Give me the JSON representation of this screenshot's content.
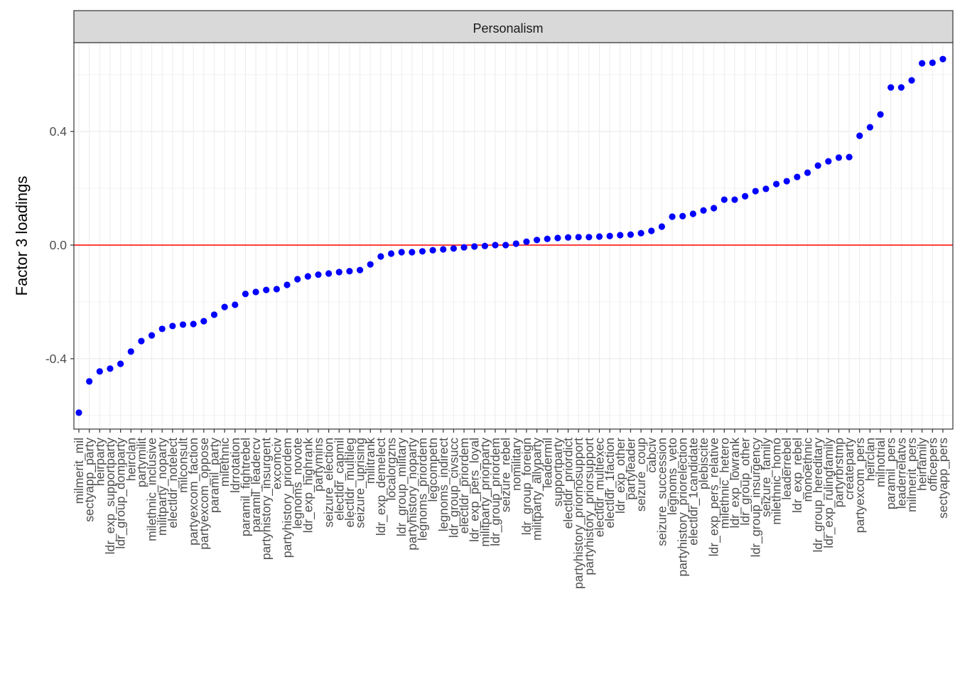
{
  "chart_data": {
    "type": "scatter",
    "panel_title": "Personalism",
    "ylabel": "Factor 3 loadings",
    "xlabel": "",
    "ylim": [
      -0.64,
      0.71
    ],
    "yticks": [
      -0.4,
      0.0,
      0.4
    ],
    "ytick_labels": [
      "-0.4",
      "0.0",
      "0.4"
    ],
    "reference_line_y": 0,
    "grid": true,
    "colors": {
      "points": "#0000ff",
      "reference_line": "#ff0000",
      "strip_background": "#d9d9d9",
      "grid": "#ebebeb",
      "panel_border": "#333333"
    },
    "categories": [
      "milmerit_mil",
      "sectyapp_party",
      "heirparty",
      "ldr_exp_supportparty",
      "ldr_group_domparty",
      "heirclan",
      "partymilit",
      "milethnic_inclusive",
      "militparty_noparty",
      "electldr_notelect",
      "milconsult",
      "partyexcom_faction",
      "partyexcom_oppose",
      "paramil_party",
      "milethnic",
      "ldrrotation",
      "paramil_fightrebel",
      "paramil_leadercv",
      "partyhistory_insurgent",
      "excomciv",
      "partyhistory_priordem",
      "legnoms_novote",
      "ldr_exp_highrank",
      "partymins",
      "seizure_election",
      "electldr_capmil",
      "electldr_multileg",
      "seizure_uprising",
      "militrank",
      "ldr_exp_demelect",
      "localorgzns",
      "ldr_group_military",
      "partyhistory_noparty",
      "legnoms_priordem",
      "legcompetn",
      "legnoms_indirect",
      "ldr_group_civsucc",
      "electldr_priordem",
      "ldr_exp_pers_loyal",
      "militparty_priorparty",
      "ldr_group_priordem",
      "seizure_rebel",
      "nomilitary",
      "ldr_group_foreign",
      "militparty_allyparty",
      "leadermil",
      "supportparty",
      "electldr_priordict",
      "partyhistory_priornosupport",
      "partyhistory_priorsupport",
      "electldr_multiexec",
      "electldr_1faction",
      "ldr_exp_other",
      "partyleader",
      "seizure_coup",
      "cabciv",
      "seizure_succession",
      "legnoms_veto",
      "partyhistory_priorelection",
      "electldr_1candidate",
      "plebiscite",
      "ldr_exp_pers_relative",
      "milethnic_hetero",
      "ldr_exp_lowrank",
      "ldr_group_other",
      "ldr_group_insurgency",
      "seizure_family",
      "milethnic_homo",
      "leaderrebel",
      "ldr_exp_rebel",
      "monoethnic",
      "ldr_group_hereditary",
      "ldr_exp_rulingfamily",
      "partyrbrstmp",
      "createparty",
      "partyexcom_pers",
      "heirclan",
      "milnotrial",
      "paramil_pers",
      "leaderrelatvs",
      "milmerit_pers",
      "heirfamily",
      "officepers",
      "sectyapp_pers"
    ],
    "values": [
      -0.59,
      -0.48,
      -0.445,
      -0.435,
      -0.418,
      -0.375,
      -0.338,
      -0.318,
      -0.295,
      -0.285,
      -0.28,
      -0.278,
      -0.268,
      -0.245,
      -0.218,
      -0.21,
      -0.172,
      -0.165,
      -0.158,
      -0.155,
      -0.14,
      -0.12,
      -0.11,
      -0.104,
      -0.1,
      -0.095,
      -0.092,
      -0.088,
      -0.068,
      -0.04,
      -0.03,
      -0.025,
      -0.025,
      -0.022,
      -0.018,
      -0.015,
      -0.012,
      -0.008,
      -0.005,
      -0.003,
      0.0,
      0.0,
      0.005,
      0.012,
      0.018,
      0.022,
      0.025,
      0.027,
      0.028,
      0.028,
      0.03,
      0.032,
      0.035,
      0.037,
      0.042,
      0.05,
      0.065,
      0.1,
      0.102,
      0.11,
      0.122,
      0.13,
      0.16,
      0.16,
      0.172,
      0.19,
      0.198,
      0.215,
      0.225,
      0.24,
      0.255,
      0.28,
      0.295,
      0.308,
      0.31,
      0.385,
      0.415,
      0.46,
      0.555,
      0.555,
      0.58,
      0.64,
      0.642,
      0.655
    ]
  }
}
